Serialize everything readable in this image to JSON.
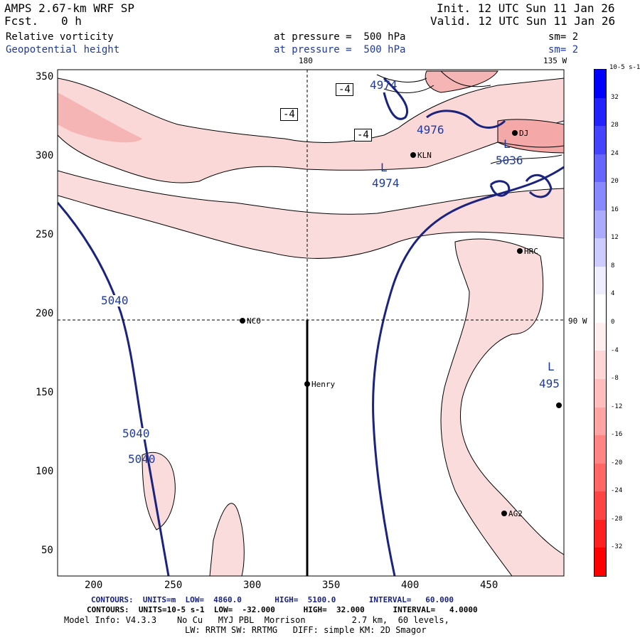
{
  "header": {
    "model": "AMPS 2.67-km WRF SP",
    "forecast_label": "Fcst.",
    "forecast_value": "0 h",
    "init": "Init. 12 UTC Sun 11 Jan 26",
    "valid": "Valid. 12 UTC Sun 11 Jan 26",
    "field1_name": "Relative vorticity",
    "field1_level": "at pressure =  500 hPa",
    "field1_sm": "sm= 2",
    "field2_name": "Geopotential height",
    "field2_level": "at pressure =  500 hPa",
    "field2_sm": "sm= 2"
  },
  "map": {
    "meridian_top": "180",
    "meridian_top_right": "135 W",
    "meridian_right": "90 W",
    "x_ticks": [
      "200",
      "250",
      "300",
      "350",
      "400",
      "450"
    ],
    "y_ticks": [
      "350",
      "300",
      "250",
      "200",
      "150",
      "100",
      "50"
    ],
    "stations": [
      {
        "id": "NCO"
      },
      {
        "id": "Henry"
      },
      {
        "id": "KLN"
      },
      {
        "id": "HRC"
      },
      {
        "id": "AG2"
      },
      {
        "id": "DJ"
      }
    ],
    "height_labels": [
      "5040",
      "5040",
      "5040",
      "4974",
      "4976",
      "4974",
      "5036",
      "495"
    ],
    "low_markers": [
      "L",
      "L",
      "L"
    ],
    "vorticity_labels": [
      "-4",
      "-4",
      "-4"
    ]
  },
  "colorbar": {
    "unit": "10-5 s-1",
    "labels": [
      "32",
      "28",
      "24",
      "20",
      "16",
      "12",
      "8",
      "4",
      "0",
      "-4",
      "-8",
      "-12",
      "-16",
      "-20",
      "-24",
      "-28",
      "-32"
    ],
    "colors": [
      "#0000ff",
      "#2222ff",
      "#4444ff",
      "#6666ff",
      "#8888ff",
      "#aaaaff",
      "#ccccff",
      "#eeeeff",
      "#ffffff",
      "#ffeeee",
      "#ffd6d6",
      "#ffbdbd",
      "#ffa3a3",
      "#ff8585",
      "#ff6666",
      "#ff4444",
      "#ff2020",
      "#ff0000"
    ]
  },
  "footer": {
    "contours1": "CONTOURS:  UNITS=m  LOW=  4860.0       HIGH=  5100.0       INTERVAL=   60.000",
    "contours2": "CONTOURS:  UNITS=10-5 s-1  LOW=  -32.000      HIGH=  32.000      INTERVAL=   4.0000",
    "model_info": "Model Info: V4.3.3    No Cu   MYJ PBL  Morrison         2.7 km,  60 levels,",
    "physics": "LW: RRTM SW: RRTMG   DIFF: simple KM: 2D Smagor"
  }
}
